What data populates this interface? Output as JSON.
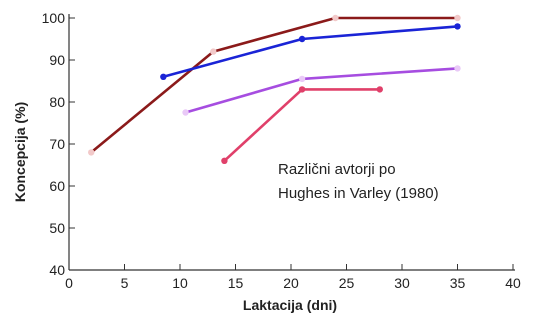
{
  "chart_data": {
    "type": "line",
    "title": "",
    "xlabel": "Laktacija  (dni)",
    "ylabel": "Koncepcija  (%)",
    "xlim": [
      0,
      40
    ],
    "ylim": [
      40,
      100
    ],
    "x_ticks": [
      "0",
      "5",
      "10",
      "15",
      "20",
      "25",
      "30",
      "35",
      "40"
    ],
    "y_ticks": [
      "40",
      "50",
      "60",
      "70",
      "80",
      "90",
      "100"
    ],
    "grid": false,
    "annotation": [
      "Različni avtorji po",
      "Hughes in Varley (1980)"
    ],
    "series": [
      {
        "color": "#8b1a1a",
        "marker_color": "#f2c9c9",
        "x": [
          2,
          13,
          24,
          35
        ],
        "y": [
          68,
          92,
          100,
          100
        ]
      },
      {
        "color": "#1a24d6",
        "marker_color": "#1a24d6",
        "x": [
          8.5,
          21,
          35
        ],
        "y": [
          86,
          95,
          98
        ]
      },
      {
        "color": "#a64de0",
        "marker_color": "#e9c9f7",
        "x": [
          10.5,
          21,
          35
        ],
        "y": [
          77.5,
          85.5,
          88
        ]
      },
      {
        "color": "#e0406a",
        "marker_color": "#e0406a",
        "x": [
          14,
          21,
          28
        ],
        "y": [
          66,
          83,
          83
        ]
      }
    ]
  }
}
